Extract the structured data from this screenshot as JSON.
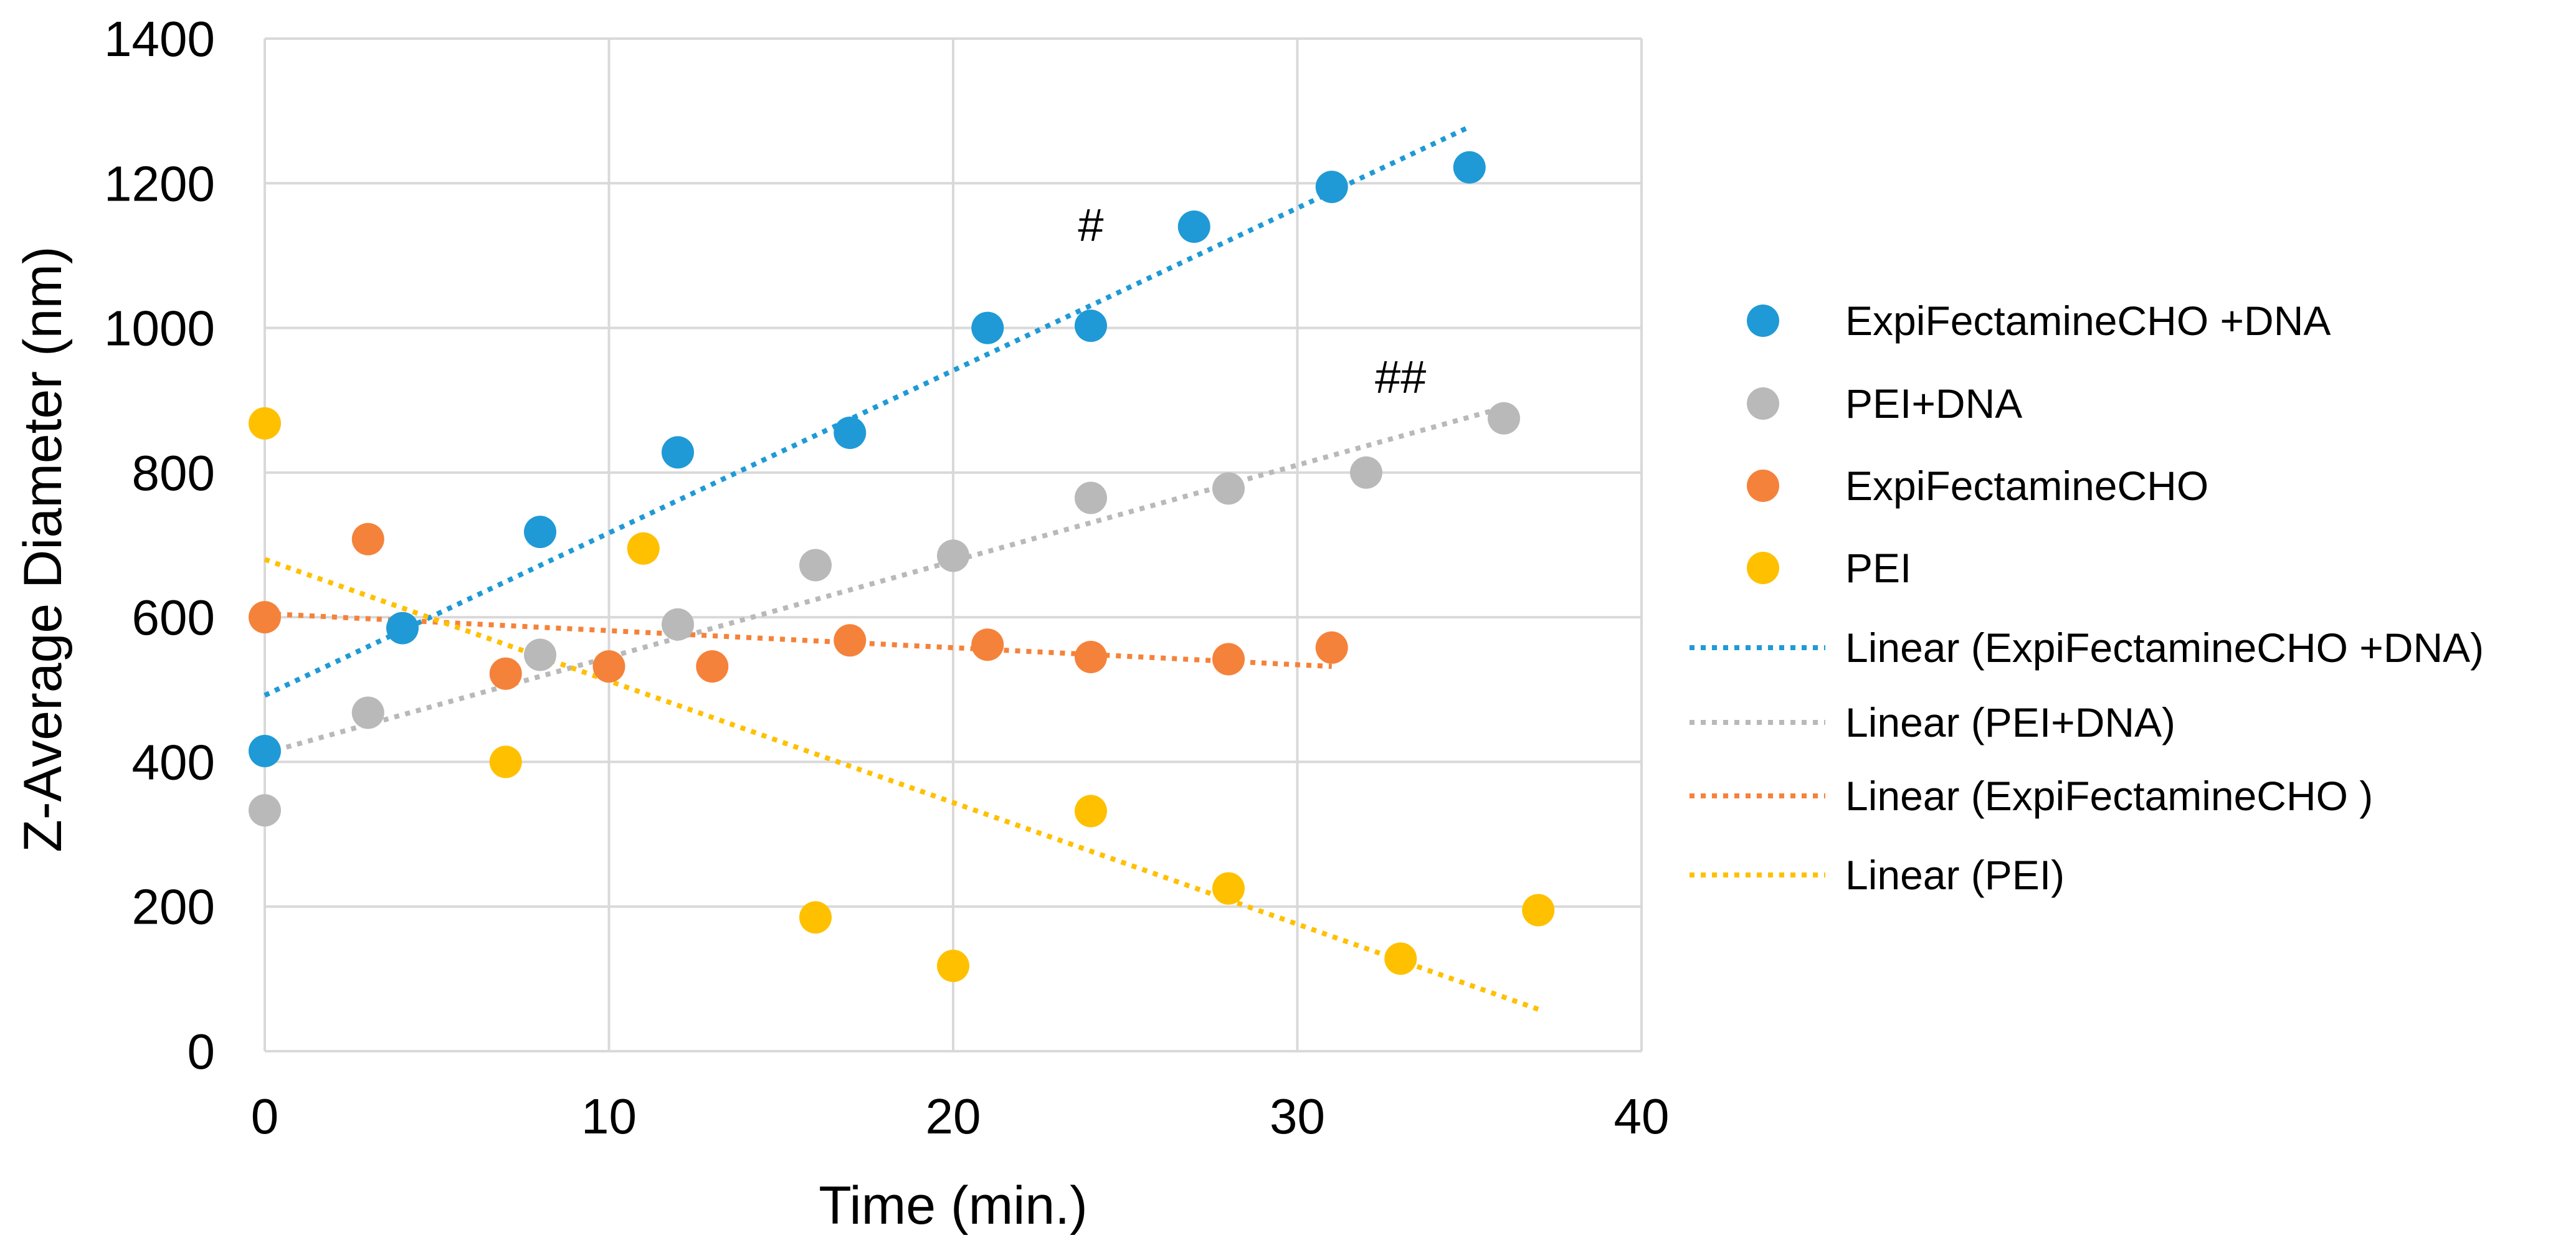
{
  "chart_data": {
    "type": "scatter",
    "title": "",
    "xlabel": "Time (min.)",
    "ylabel": "Z-Average Diameter (nm)",
    "xlim": [
      0,
      40
    ],
    "ylim": [
      0,
      1400
    ],
    "x_ticks": [
      0,
      10,
      20,
      30,
      40
    ],
    "y_ticks": [
      0,
      200,
      400,
      600,
      800,
      1000,
      1200,
      1400
    ],
    "grid": true,
    "legend_position": "right",
    "series": [
      {
        "name": "ExpiFectamineCHO +DNA",
        "color": "#1f9ad6",
        "x": [
          0,
          4,
          8,
          12,
          17,
          21,
          24,
          27,
          31,
          35
        ],
        "y": [
          415,
          585,
          718,
          828,
          855,
          1000,
          1003,
          1140,
          1195,
          1222
        ],
        "trendline": {
          "name": "Linear (ExpiFectamineCHO +DNA)",
          "x_range": [
            0,
            35
          ],
          "y_start": 492,
          "y_end": 1278
        }
      },
      {
        "name": "PEI+DNA",
        "color": "#b9b9b9",
        "x": [
          0,
          3,
          8,
          12,
          16,
          20,
          24,
          28,
          32,
          36
        ],
        "y": [
          333,
          468,
          548,
          590,
          672,
          685,
          765,
          778,
          800,
          875
        ],
        "trendline": {
          "name": "Linear (PEI+DNA)",
          "x_range": [
            0,
            36
          ],
          "y_start": 412,
          "y_end": 890
        }
      },
      {
        "name": "ExpiFectamineCHO",
        "color": "#f5823a",
        "x": [
          0,
          3,
          7,
          10,
          13,
          17,
          21,
          24,
          28,
          31
        ],
        "y": [
          600,
          708,
          522,
          532,
          532,
          568,
          562,
          545,
          542,
          558
        ],
        "trendline": {
          "name": "Linear (ExpiFectamineCHO )",
          "x_range": [
            0,
            31
          ],
          "y_start": 605,
          "y_end": 532
        }
      },
      {
        "name": "PEI",
        "color": "#ffc000",
        "x": [
          0,
          7,
          11,
          16,
          20,
          24,
          28,
          33,
          37
        ],
        "y": [
          868,
          400,
          695,
          185,
          118,
          332,
          225,
          128,
          195
        ],
        "trendline": {
          "name": "Linear (PEI)",
          "x_range": [
            0,
            37
          ],
          "y_start": 680,
          "y_end": 58
        }
      }
    ],
    "annotations": [
      {
        "text": "#",
        "x": 24,
        "y": 1120
      },
      {
        "text": "##",
        "x": 33,
        "y": 910
      }
    ]
  }
}
